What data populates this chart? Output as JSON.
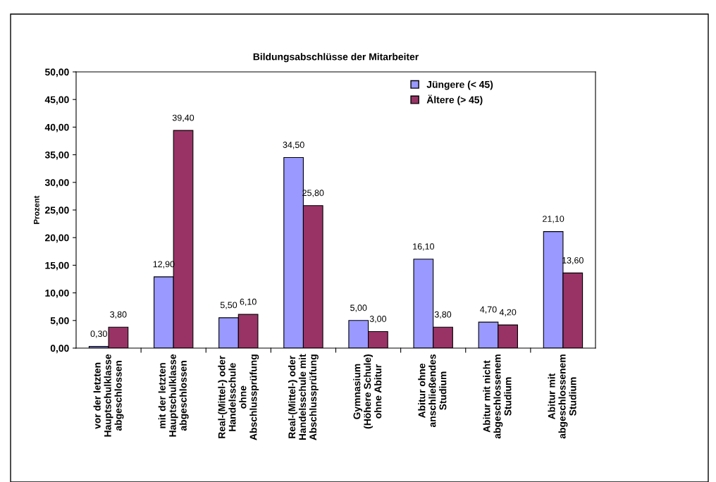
{
  "chart_data": {
    "type": "bar",
    "title": "Bildungsabschlüsse der Mitarbeiter",
    "ylabel": "Prozent",
    "categories": [
      "vor der letzten\nHauptschulklasse\nabgeschlossen",
      "mit der letzten\nHauptschulklasse\nabgeschlossen",
      "Real-(Mittel-) oder\nHandelsschule\nohne\nAbschlussprüfung",
      "Real-(Mittel-) oder\nHandelsschule mit\nAbschlussprüfung",
      "Gymnasium\n(Höhere Schule)\nohne Abitur",
      "Abitur ohne\nanschließendes\nStudium",
      "Abitur mit nicht\nabgeschlossenem\nStudium",
      "Abitur mit\nabgeschlossenem\nStudium"
    ],
    "series": [
      {
        "name": "Jüngere (< 45)",
        "color": "#9999ff",
        "values": [
          0.3,
          12.9,
          5.5,
          34.5,
          5.0,
          16.1,
          4.7,
          21.1
        ],
        "value_labels": [
          "0,30",
          "12,90",
          "5,50",
          "34,50",
          "5,00",
          "16,10",
          "4,70",
          "21,10"
        ]
      },
      {
        "name": "Ältere (> 45)",
        "color": "#993366",
        "values": [
          3.8,
          39.4,
          6.1,
          25.8,
          3.0,
          3.8,
          4.2,
          13.6
        ],
        "value_labels": [
          "3,80",
          "39,40",
          "6,10",
          "25,80",
          "3,00",
          "3,80",
          "4,20",
          "13,60"
        ]
      }
    ],
    "ylim": [
      0,
      50
    ],
    "yticks": [
      {
        "value": 0,
        "label": "0,00"
      },
      {
        "value": 5,
        "label": "5,00"
      },
      {
        "value": 10,
        "label": "10,00"
      },
      {
        "value": 15,
        "label": "15,00"
      },
      {
        "value": 20,
        "label": "20,00"
      },
      {
        "value": 25,
        "label": "25,00"
      },
      {
        "value": 30,
        "label": "30,00"
      },
      {
        "value": 35,
        "label": "35,00"
      },
      {
        "value": 40,
        "label": "40,00"
      },
      {
        "value": 45,
        "label": "45,00"
      },
      {
        "value": 50,
        "label": "50,00"
      }
    ],
    "grid": false,
    "legend": "top right"
  }
}
